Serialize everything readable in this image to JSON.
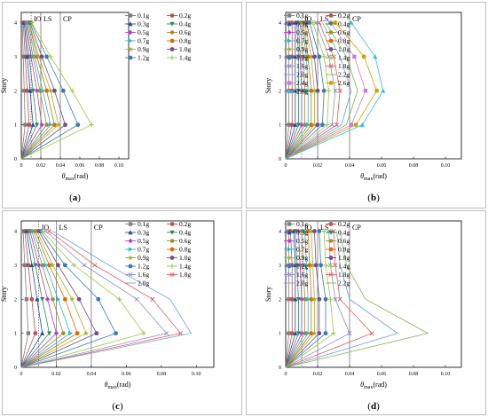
{
  "colors": {
    "0.1g": "#7f7f7f",
    "0.2g": "#c0504d",
    "0.3g": "#1f4e9f",
    "0.4g": "#2e8b57",
    "0.5g": "#b03fcf",
    "0.6g": "#a08a2e",
    "0.7g": "#26b8d8",
    "0.8g": "#e06a00",
    "0.9g": "#9eb32b",
    "1.0g": "#704e8a",
    "1.2g": "#3b78b5",
    "1.4g": "#9aca3c",
    "1.6g": "#8f8fcf",
    "1.8g": "#e05c5c",
    "2.0g": "#6fa0d8",
    "2.2g": "#7fb34a",
    "2.4g": "#c77bd8",
    "2.6g": "#d1a000",
    "2.8g": "#2ec4d8"
  },
  "shared": {
    "xlabel": "θmax(rad)",
    "ylabel": "Story",
    "xticks": [
      "0",
      "0.02",
      "0.04",
      "0.06",
      "0.08",
      "0.10"
    ],
    "yticks": [
      "0",
      "1",
      "2",
      "3",
      "4"
    ],
    "ref_lines": [
      {
        "label": "IO",
        "x": 0.01
      },
      {
        "label": "LS",
        "x": 0.02
      },
      {
        "label": "CP",
        "x": 0.04
      }
    ]
  },
  "chart_data": [
    {
      "panel": "(a)",
      "type": "line",
      "xlim": [
        0,
        0.11
      ],
      "ylim": [
        0,
        4.3
      ],
      "legend": "top-right",
      "series": [
        {
          "name": "0.1g",
          "values": [
            0,
            0.004,
            0.003,
            0.002,
            0.001
          ]
        },
        {
          "name": "0.2g",
          "values": [
            0,
            0.008,
            0.006,
            0.004,
            0.002
          ]
        },
        {
          "name": "0.3g",
          "values": [
            0,
            0.012,
            0.009,
            0.006,
            0.003
          ]
        },
        {
          "name": "0.4g",
          "values": [
            0,
            0.016,
            0.012,
            0.008,
            0.004
          ]
        },
        {
          "name": "0.5g",
          "values": [
            0,
            0.021,
            0.016,
            0.01,
            0.005
          ]
        },
        {
          "name": "0.6g",
          "values": [
            0,
            0.026,
            0.019,
            0.012,
            0.006
          ]
        },
        {
          "name": "0.7g",
          "values": [
            0,
            0.03,
            0.022,
            0.014,
            0.007
          ]
        },
        {
          "name": "0.8g",
          "values": [
            0,
            0.034,
            0.026,
            0.016,
            0.008
          ]
        },
        {
          "name": "0.9g",
          "values": [
            0,
            0.038,
            0.03,
            0.018,
            0.008
          ]
        },
        {
          "name": "1.0g",
          "values": [
            0,
            0.045,
            0.034,
            0.021,
            0.009
          ]
        },
        {
          "name": "1.2g",
          "values": [
            0,
            0.058,
            0.043,
            0.026,
            0.01
          ]
        },
        {
          "name": "1.4g",
          "values": [
            0,
            0.072,
            0.052,
            0.03,
            0.011
          ]
        }
      ]
    },
    {
      "panel": "(b)",
      "type": "line",
      "xlim": [
        0,
        0.11
      ],
      "ylim": [
        0,
        4.3
      ],
      "legend": "top-right",
      "series": [
        {
          "name": "0.1g",
          "values": [
            0,
            0.002,
            0.002,
            0.002,
            0.002
          ]
        },
        {
          "name": "0.2g",
          "values": [
            0,
            0.004,
            0.004,
            0.004,
            0.004
          ]
        },
        {
          "name": "0.3g",
          "values": [
            0,
            0.006,
            0.006,
            0.006,
            0.006
          ]
        },
        {
          "name": "0.4g",
          "values": [
            0,
            0.008,
            0.008,
            0.008,
            0.007
          ]
        },
        {
          "name": "0.5g",
          "values": [
            0,
            0.01,
            0.01,
            0.009,
            0.008
          ]
        },
        {
          "name": "0.6g",
          "values": [
            0,
            0.012,
            0.012,
            0.011,
            0.009
          ]
        },
        {
          "name": "0.7g",
          "values": [
            0,
            0.014,
            0.014,
            0.013,
            0.01
          ]
        },
        {
          "name": "0.8g",
          "values": [
            0,
            0.016,
            0.016,
            0.014,
            0.011
          ]
        },
        {
          "name": "0.9g",
          "values": [
            0,
            0.018,
            0.018,
            0.016,
            0.012
          ]
        },
        {
          "name": "1.0g",
          "values": [
            0,
            0.02,
            0.02,
            0.018,
            0.013
          ]
        },
        {
          "name": "1.2g",
          "values": [
            0,
            0.023,
            0.024,
            0.021,
            0.015
          ]
        },
        {
          "name": "1.4g",
          "values": [
            0,
            0.026,
            0.027,
            0.024,
            0.017
          ]
        },
        {
          "name": "1.6g",
          "values": [
            0,
            0.029,
            0.031,
            0.027,
            0.019
          ]
        },
        {
          "name": "1.8g",
          "values": [
            0,
            0.032,
            0.034,
            0.03,
            0.021
          ]
        },
        {
          "name": "2.0g",
          "values": [
            0,
            0.035,
            0.041,
            0.034,
            0.023
          ]
        },
        {
          "name": "2.2g",
          "values": [
            0,
            0.038,
            0.045,
            0.038,
            0.025
          ]
        },
        {
          "name": "2.4g",
          "values": [
            0,
            0.041,
            0.05,
            0.043,
            0.028
          ]
        },
        {
          "name": "2.6g",
          "values": [
            0,
            0.044,
            0.057,
            0.049,
            0.031
          ]
        },
        {
          "name": "2.8g",
          "values": [
            0,
            0.048,
            0.061,
            0.056,
            0.041
          ]
        }
      ]
    },
    {
      "panel": "(c)",
      "type": "line",
      "xlim": [
        0,
        0.11
      ],
      "ylim": [
        0,
        4.3
      ],
      "legend": "top-right",
      "series": [
        {
          "name": "0.1g",
          "values": [
            0,
            0.004,
            0.003,
            0.002,
            0.001
          ]
        },
        {
          "name": "0.2g",
          "values": [
            0,
            0.008,
            0.006,
            0.004,
            0.002
          ]
        },
        {
          "name": "0.3g",
          "values": [
            0,
            0.012,
            0.009,
            0.006,
            0.003
          ]
        },
        {
          "name": "0.4g",
          "values": [
            0,
            0.016,
            0.012,
            0.008,
            0.004
          ]
        },
        {
          "name": "0.5g",
          "values": [
            0,
            0.02,
            0.015,
            0.01,
            0.005
          ]
        },
        {
          "name": "0.6g",
          "values": [
            0,
            0.024,
            0.018,
            0.012,
            0.006
          ]
        },
        {
          "name": "0.7g",
          "values": [
            0,
            0.028,
            0.021,
            0.014,
            0.007
          ]
        },
        {
          "name": "0.8g",
          "values": [
            0,
            0.032,
            0.025,
            0.016,
            0.008
          ]
        },
        {
          "name": "0.9g",
          "values": [
            0,
            0.037,
            0.029,
            0.018,
            0.009
          ]
        },
        {
          "name": "1.0g",
          "values": [
            0,
            0.043,
            0.033,
            0.021,
            0.01
          ]
        },
        {
          "name": "1.2g",
          "values": [
            0,
            0.054,
            0.044,
            0.025,
            0.011
          ]
        },
        {
          "name": "1.4g",
          "values": [
            0,
            0.07,
            0.056,
            0.03,
            0.012
          ]
        },
        {
          "name": "1.6g",
          "values": [
            0,
            0.083,
            0.066,
            0.036,
            0.014
          ]
        },
        {
          "name": "1.8g",
          "values": [
            0,
            0.091,
            0.075,
            0.042,
            0.016
          ]
        },
        {
          "name": "2.0g",
          "values": [
            0,
            0.097,
            0.085,
            0.05,
            0.018
          ]
        }
      ]
    },
    {
      "panel": "(d)",
      "type": "line",
      "xlim": [
        0,
        0.11
      ],
      "ylim": [
        0,
        4.3
      ],
      "legend": "top-right",
      "series": [
        {
          "name": "0.1g",
          "values": [
            0,
            0.002,
            0.002,
            0.002,
            0.002
          ]
        },
        {
          "name": "0.2g",
          "values": [
            0,
            0.004,
            0.004,
            0.004,
            0.003
          ]
        },
        {
          "name": "0.3g",
          "values": [
            0,
            0.006,
            0.006,
            0.006,
            0.005
          ]
        },
        {
          "name": "0.4g",
          "values": [
            0,
            0.008,
            0.008,
            0.007,
            0.006
          ]
        },
        {
          "name": "0.5g",
          "values": [
            0,
            0.01,
            0.01,
            0.009,
            0.008
          ]
        },
        {
          "name": "0.6g",
          "values": [
            0,
            0.012,
            0.012,
            0.011,
            0.01
          ]
        },
        {
          "name": "0.7g",
          "values": [
            0,
            0.014,
            0.014,
            0.013,
            0.012
          ]
        },
        {
          "name": "0.8g",
          "values": [
            0,
            0.016,
            0.016,
            0.015,
            0.014
          ]
        },
        {
          "name": "0.9g",
          "values": [
            0,
            0.018,
            0.018,
            0.017,
            0.016
          ]
        },
        {
          "name": "1.0g",
          "values": [
            0,
            0.021,
            0.021,
            0.019,
            0.018
          ]
        },
        {
          "name": "1.2g",
          "values": [
            0,
            0.025,
            0.025,
            0.022,
            0.021
          ]
        },
        {
          "name": "1.4g",
          "values": [
            0,
            0.03,
            0.028,
            0.025,
            0.024
          ]
        },
        {
          "name": "1.6g",
          "values": [
            0,
            0.04,
            0.031,
            0.028,
            0.027
          ]
        },
        {
          "name": "1.8g",
          "values": [
            0,
            0.054,
            0.034,
            0.031,
            0.03
          ]
        },
        {
          "name": "2.0g",
          "values": [
            0,
            0.07,
            0.04,
            0.034,
            0.032
          ]
        },
        {
          "name": "2.2g",
          "values": [
            0,
            0.089,
            0.05,
            0.038,
            0.034
          ]
        }
      ]
    }
  ]
}
